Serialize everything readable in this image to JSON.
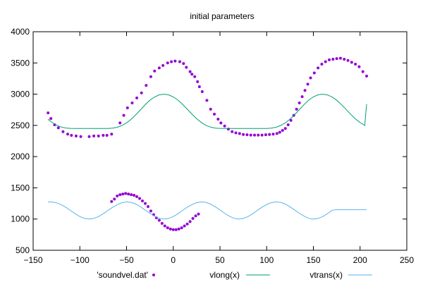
{
  "chart_data": {
    "type": "scatter",
    "title": "initial parameters",
    "xlabel": "",
    "ylabel": "",
    "xlim": [
      -150,
      250
    ],
    "ylim": [
      500,
      4000
    ],
    "xticks": [
      -150,
      -100,
      -50,
      0,
      50,
      100,
      150,
      200,
      250
    ],
    "yticks": [
      500,
      1000,
      1500,
      2000,
      2500,
      3000,
      3500,
      4000
    ],
    "grid": false,
    "legend_position": "bottom",
    "series": [
      {
        "name": "'soundvel.dat'",
        "kind": "points",
        "color": "#9400d3",
        "points": [
          [
            -134,
            2700
          ],
          [
            -131,
            2610
          ],
          [
            -127,
            2510
          ],
          [
            -123,
            2460
          ],
          [
            -118,
            2400
          ],
          [
            -113,
            2360
          ],
          [
            -109,
            2340
          ],
          [
            -104,
            2330
          ],
          [
            -99,
            2320
          ],
          [
            -90,
            2320
          ],
          [
            -85,
            2330
          ],
          [
            -80,
            2330
          ],
          [
            -75,
            2340
          ],
          [
            -71,
            2340
          ],
          [
            -66,
            2360
          ],
          [
            -57,
            2540
          ],
          [
            -53,
            2660
          ],
          [
            -49,
            2780
          ],
          [
            -44,
            2860
          ],
          [
            -39,
            2940
          ],
          [
            -34,
            3020
          ],
          [
            -29,
            3140
          ],
          [
            -24,
            3280
          ],
          [
            -20,
            3370
          ],
          [
            -15,
            3420
          ],
          [
            -11,
            3460
          ],
          [
            -6,
            3500
          ],
          [
            -2,
            3520
          ],
          [
            2,
            3530
          ],
          [
            7,
            3520
          ],
          [
            11,
            3490
          ],
          [
            14,
            3430
          ],
          [
            18,
            3360
          ],
          [
            20,
            3320
          ],
          [
            23,
            3280
          ],
          [
            26,
            3200
          ],
          [
            28,
            3120
          ],
          [
            31,
            3040
          ],
          [
            36,
            2900
          ],
          [
            40,
            2760
          ],
          [
            44,
            2680
          ],
          [
            48,
            2600
          ],
          [
            51,
            2540
          ],
          [
            55,
            2490
          ],
          [
            59,
            2440
          ],
          [
            63,
            2400
          ],
          [
            67,
            2380
          ],
          [
            71,
            2370
          ],
          [
            75,
            2355
          ],
          [
            79,
            2350
          ],
          [
            83,
            2345
          ],
          [
            87,
            2345
          ],
          [
            91,
            2345
          ],
          [
            95,
            2345
          ],
          [
            99,
            2350
          ],
          [
            103,
            2355
          ],
          [
            107,
            2360
          ],
          [
            111,
            2370
          ],
          [
            114,
            2390
          ],
          [
            117,
            2420
          ],
          [
            120,
            2450
          ],
          [
            123,
            2510
          ],
          [
            126,
            2580
          ],
          [
            129,
            2660
          ],
          [
            132,
            2760
          ],
          [
            135,
            2860
          ],
          [
            138,
            2960
          ],
          [
            141,
            3060
          ],
          [
            144,
            3160
          ],
          [
            147,
            3260
          ],
          [
            151,
            3340
          ],
          [
            155,
            3420
          ],
          [
            159,
            3480
          ],
          [
            163,
            3520
          ],
          [
            167,
            3550
          ],
          [
            171,
            3560
          ],
          [
            175,
            3570
          ],
          [
            179,
            3575
          ],
          [
            183,
            3560
          ],
          [
            187,
            3540
          ],
          [
            191,
            3510
          ],
          [
            195,
            3480
          ],
          [
            199,
            3440
          ],
          [
            203,
            3360
          ],
          [
            207,
            3290
          ],
          [
            -66,
            1280
          ],
          [
            -63,
            1320
          ],
          [
            -60,
            1370
          ],
          [
            -57,
            1390
          ],
          [
            -54,
            1400
          ],
          [
            -51,
            1410
          ],
          [
            -48,
            1400
          ],
          [
            -45,
            1390
          ],
          [
            -42,
            1380
          ],
          [
            -39,
            1360
          ],
          [
            -36,
            1330
          ],
          [
            -33,
            1290
          ],
          [
            -30,
            1250
          ],
          [
            -27,
            1200
          ],
          [
            -24,
            1130
          ],
          [
            -21,
            1070
          ],
          [
            -18,
            1020
          ],
          [
            -15,
            980
          ],
          [
            -12,
            930
          ],
          [
            -9,
            890
          ],
          [
            -6,
            860
          ],
          [
            -3,
            840
          ],
          [
            0,
            830
          ],
          [
            3,
            830
          ],
          [
            6,
            840
          ],
          [
            9,
            860
          ],
          [
            12,
            890
          ],
          [
            15,
            920
          ],
          [
            18,
            960
          ],
          [
            21,
            1010
          ],
          [
            24,
            1050
          ],
          [
            27,
            1080
          ]
        ]
      },
      {
        "name": "vlong(x)",
        "kind": "line",
        "color": "#009e73",
        "x": [
          -134,
          -130,
          -125,
          -120,
          -115,
          -110,
          -105,
          -100,
          -95,
          -90,
          -85,
          -80,
          -75,
          -70,
          -65,
          -60,
          -55,
          -50,
          -45,
          -40,
          -35,
          -30,
          -25,
          -20,
          -15,
          -10,
          -5,
          0,
          5,
          10,
          15,
          20,
          25,
          30,
          35,
          40,
          45,
          50,
          55,
          60,
          65,
          70,
          75,
          80,
          85,
          90,
          95,
          100,
          105,
          110,
          115,
          120,
          125,
          130,
          135,
          140,
          145,
          150,
          155,
          160,
          165,
          170,
          175,
          180,
          185,
          190,
          195,
          200,
          205,
          207
        ],
        "y": [
          2598,
          2550,
          2503,
          2473,
          2458,
          2452,
          2450,
          2450,
          2450,
          2450,
          2450,
          2450,
          2450,
          2451,
          2456,
          2470,
          2497,
          2540,
          2599,
          2671,
          2751,
          2833,
          2903,
          2956,
          2989,
          3000,
          2989,
          2957,
          2905,
          2837,
          2759,
          2680,
          2607,
          2547,
          2501,
          2472,
          2457,
          2452,
          2450,
          2450,
          2450,
          2450,
          2450,
          2450,
          2450,
          2450,
          2450,
          2451,
          2456,
          2470,
          2498,
          2541,
          2600,
          2672,
          2752,
          2834,
          2905,
          2957,
          2989,
          3000,
          2988,
          2955,
          2903,
          2834,
          2756,
          2677,
          2604,
          2545,
          2500,
          2840
        ]
      },
      {
        "name": "vtrans(x)",
        "kind": "line",
        "color": "#56b4e9",
        "x": [
          -134,
          -130,
          -125,
          -120,
          -115,
          -110,
          -105,
          -100,
          -95,
          -90,
          -85,
          -80,
          -75,
          -70,
          -65,
          -60,
          -55,
          -50,
          -45,
          -40,
          -35,
          -30,
          -25,
          -20,
          -15,
          -10,
          -5,
          0,
          5,
          10,
          15,
          20,
          25,
          30,
          35,
          40,
          45,
          50,
          55,
          60,
          65,
          70,
          75,
          80,
          85,
          90,
          95,
          100,
          105,
          110,
          115,
          120,
          125,
          130,
          135,
          140,
          145,
          150,
          155,
          160,
          165,
          170,
          175,
          180,
          185,
          190,
          195,
          200,
          205,
          207
        ],
        "y": [
          1275,
          1275,
          1260,
          1230,
          1188,
          1138,
          1085,
          1040,
          1010,
          1000,
          1010,
          1040,
          1085,
          1138,
          1188,
          1230,
          1262,
          1275,
          1268,
          1240,
          1196,
          1145,
          1094,
          1046,
          1012,
          1000,
          1010,
          1040,
          1085,
          1138,
          1190,
          1232,
          1262,
          1275,
          1268,
          1240,
          1197,
          1146,
          1093,
          1046,
          1012,
          1000,
          1010,
          1040,
          1085,
          1139,
          1190,
          1233,
          1263,
          1275,
          1268,
          1239,
          1196,
          1145,
          1093,
          1046,
          1012,
          1000,
          1010,
          1040,
          1086,
          1140,
          1150,
          1150,
          1150,
          1150,
          1150,
          1150,
          1150,
          1150
        ]
      }
    ]
  }
}
